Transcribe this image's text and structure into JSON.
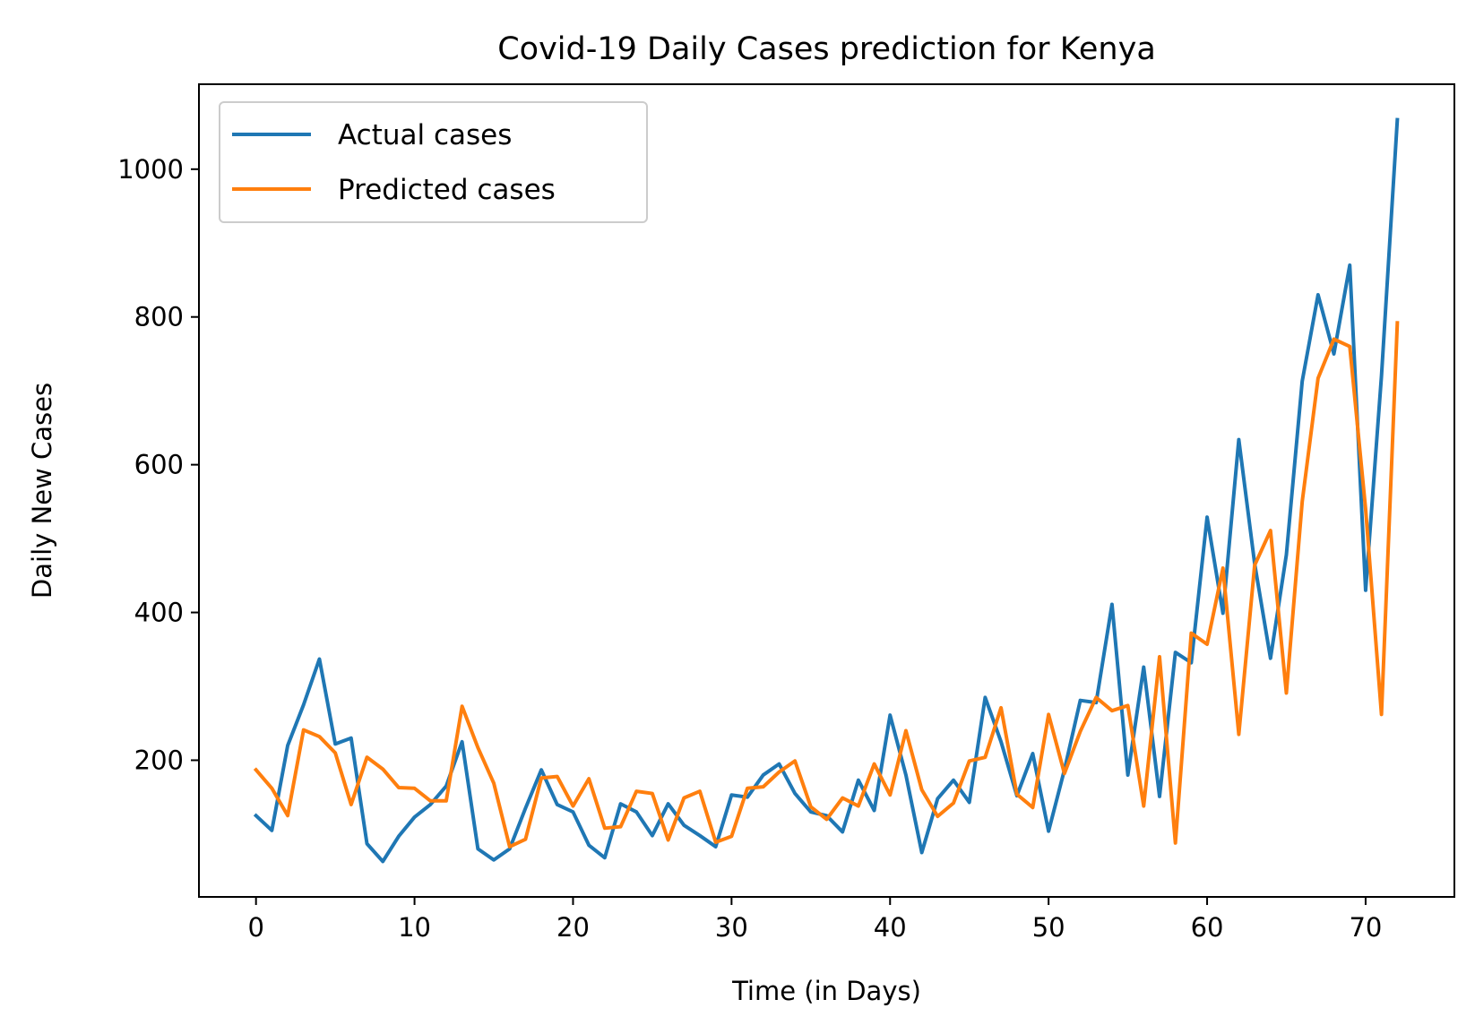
{
  "chart_data": {
    "type": "line",
    "title": "Covid-19 Daily Cases prediction for Kenya",
    "xlabel": "Time (in Days)",
    "ylabel": "Daily New Cases",
    "xlim": [
      -3.6,
      75.6
    ],
    "ylim": [
      15,
      1115
    ],
    "xticks": [
      0,
      10,
      20,
      30,
      40,
      50,
      60,
      70
    ],
    "yticks": [
      200,
      400,
      600,
      800,
      1000
    ],
    "xtick_labels": [
      "0",
      "10",
      "20",
      "30",
      "40",
      "50",
      "60",
      "70"
    ],
    "ytick_labels": [
      "200",
      "400",
      "600",
      "800",
      "1000"
    ],
    "grid": false,
    "legend_position": "top-left",
    "series": [
      {
        "name": "Actual cases",
        "color": "#1f77b4",
        "values": [
          125,
          105,
          220,
          275,
          337,
          222,
          230,
          87,
          63,
          97,
          123,
          140,
          165,
          225,
          80,
          65,
          80,
          135,
          187,
          140,
          130,
          85,
          68,
          141,
          130,
          98,
          141,
          112,
          98,
          83,
          153,
          150,
          180,
          195,
          155,
          130,
          125,
          103,
          173,
          132,
          261,
          180,
          75,
          148,
          173,
          143,
          285,
          225,
          152,
          209,
          104,
          187,
          281,
          278,
          411,
          180,
          326,
          151,
          346,
          332,
          529,
          399,
          634,
          466,
          338,
          478,
          713,
          830,
          750,
          870,
          430,
          720,
          1067
        ]
      },
      {
        "name": "Predicted cases",
        "color": "#ff7f0e",
        "values": [
          187,
          162,
          125,
          241,
          232,
          210,
          140,
          204,
          188,
          163,
          162,
          145,
          145,
          273,
          217,
          169,
          83,
          93,
          176,
          178,
          138,
          175,
          108,
          110,
          158,
          155,
          92,
          149,
          158,
          89,
          97,
          162,
          164,
          184,
          199,
          137,
          120,
          149,
          138,
          195,
          153,
          240,
          160,
          124,
          142,
          199,
          204,
          271,
          154,
          136,
          262,
          182,
          239,
          285,
          267,
          274,
          138,
          340,
          88,
          372,
          357,
          460,
          235,
          464,
          511,
          291,
          550,
          717,
          770,
          760,
          540,
          262,
          792
        ]
      }
    ]
  }
}
